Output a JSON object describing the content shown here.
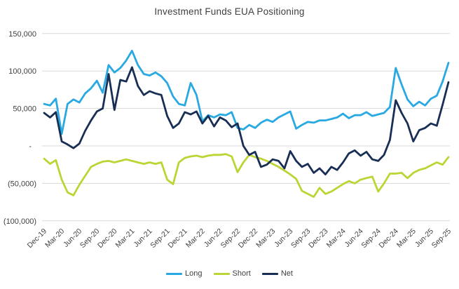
{
  "chart_data": {
    "type": "line",
    "title": "Investment Funds EUA Positioning",
    "legend_position": "bottom",
    "grid": "horizontal",
    "gridline_color": "#d9d9d9",
    "text_color": "#404040",
    "x_tick_every": 3,
    "x_labels": [
      "Dec-19",
      "Jan-20",
      "Feb-20",
      "Mar-20",
      "Apr-20",
      "May-20",
      "Jun-20",
      "Jul-20",
      "Aug-20",
      "Sep-20",
      "Oct-20",
      "Nov-20",
      "Dec-20",
      "Jan-21",
      "Feb-21",
      "Mar-21",
      "Apr-21",
      "May-21",
      "Jun-21",
      "Jul-21",
      "Aug-21",
      "Sep-21",
      "Oct-21",
      "Nov-21",
      "Dec-21",
      "Jan-22",
      "Feb-22",
      "Mar-22",
      "Apr-22",
      "May-22",
      "Jun-22",
      "Jul-22",
      "Aug-22",
      "Sep-22",
      "Oct-22",
      "Nov-22",
      "Dec-22",
      "Jan-23",
      "Feb-23",
      "Mar-23",
      "Apr-23",
      "May-23",
      "Jun-23",
      "Jul-23",
      "Aug-23",
      "Sep-23",
      "Oct-23",
      "Nov-23",
      "Dec-23",
      "Jan-24",
      "Feb-24",
      "Mar-24",
      "Apr-24",
      "May-24",
      "Jun-24",
      "Jul-24",
      "Aug-24",
      "Sep-24",
      "Oct-24",
      "Nov-24",
      "Dec-24",
      "Jan-25",
      "Feb-25",
      "Mar-25",
      "Apr-25",
      "May-25",
      "Jun-25",
      "Jul-25",
      "Aug-25",
      "Sep-25"
    ],
    "y_axis": {
      "tick_values": [
        150000,
        100000,
        50000,
        0,
        -50000,
        -100000
      ],
      "tick_labels": [
        "150,000",
        "100,000",
        "50,000",
        "-",
        "(50,000)",
        "(100,000)"
      ],
      "min": -100000,
      "max": 150000
    },
    "series": [
      {
        "name": "Long",
        "color": "#29a9e1",
        "values": [
          56000,
          54000,
          63000,
          16000,
          56000,
          62000,
          58000,
          70000,
          77000,
          87000,
          71000,
          108000,
          98000,
          104000,
          114000,
          127000,
          108000,
          96000,
          94000,
          98000,
          93000,
          84000,
          66000,
          56000,
          54000,
          84000,
          68000,
          33000,
          41000,
          38000,
          42000,
          41000,
          45000,
          24000,
          22000,
          28000,
          24000,
          31000,
          35000,
          32000,
          38000,
          42000,
          46000,
          23000,
          28000,
          32000,
          31000,
          34000,
          34000,
          36000,
          38000,
          43000,
          37000,
          41000,
          41000,
          45000,
          40000,
          42000,
          44000,
          52000,
          104000,
          82000,
          62000,
          53000,
          59000,
          54000,
          63000,
          67000,
          86000,
          111000
        ]
      },
      {
        "name": "Short",
        "color": "#bdd435",
        "values": [
          -17000,
          -24000,
          -19000,
          -45000,
          -62000,
          -66000,
          -52000,
          -40000,
          -28000,
          -24000,
          -21000,
          -20000,
          -22000,
          -20000,
          -18000,
          -20000,
          -22000,
          -24000,
          -22000,
          -24000,
          -22000,
          -45000,
          -51000,
          -22000,
          -16000,
          -14000,
          -13000,
          -15000,
          -13000,
          -12000,
          -12000,
          -11000,
          -14000,
          -35000,
          -22000,
          -12000,
          -15000,
          -17000,
          -20000,
          -24000,
          -28000,
          -33000,
          -38000,
          -44000,
          -60000,
          -64000,
          -68000,
          -56000,
          -64000,
          -61000,
          -56000,
          -51000,
          -47000,
          -50000,
          -45000,
          -43000,
          -41000,
          -61000,
          -50000,
          -37000,
          -37000,
          -36000,
          -43000,
          -36000,
          -32000,
          -30000,
          -26000,
          -22000,
          -25000,
          -15000
        ]
      },
      {
        "name": "Net",
        "color": "#182e54",
        "values": [
          44000,
          38000,
          45000,
          6000,
          2000,
          -3000,
          3000,
          20000,
          34000,
          46000,
          50000,
          96000,
          48000,
          88000,
          86000,
          105000,
          80000,
          68000,
          73000,
          70000,
          68000,
          40000,
          24000,
          30000,
          45000,
          42000,
          46000,
          30000,
          40000,
          26000,
          38000,
          34000,
          25000,
          30000,
          0,
          -12000,
          -8000,
          -28000,
          -25000,
          -18000,
          -20000,
          -30000,
          -7000,
          -20000,
          -28000,
          -24000,
          -36000,
          -30000,
          -38000,
          -28000,
          -32000,
          -22000,
          -10000,
          -6000,
          -13000,
          -8000,
          -18000,
          -20000,
          -12000,
          8000,
          61000,
          44000,
          30000,
          6000,
          21000,
          24000,
          30000,
          27000,
          55000,
          85000
        ]
      }
    ]
  }
}
